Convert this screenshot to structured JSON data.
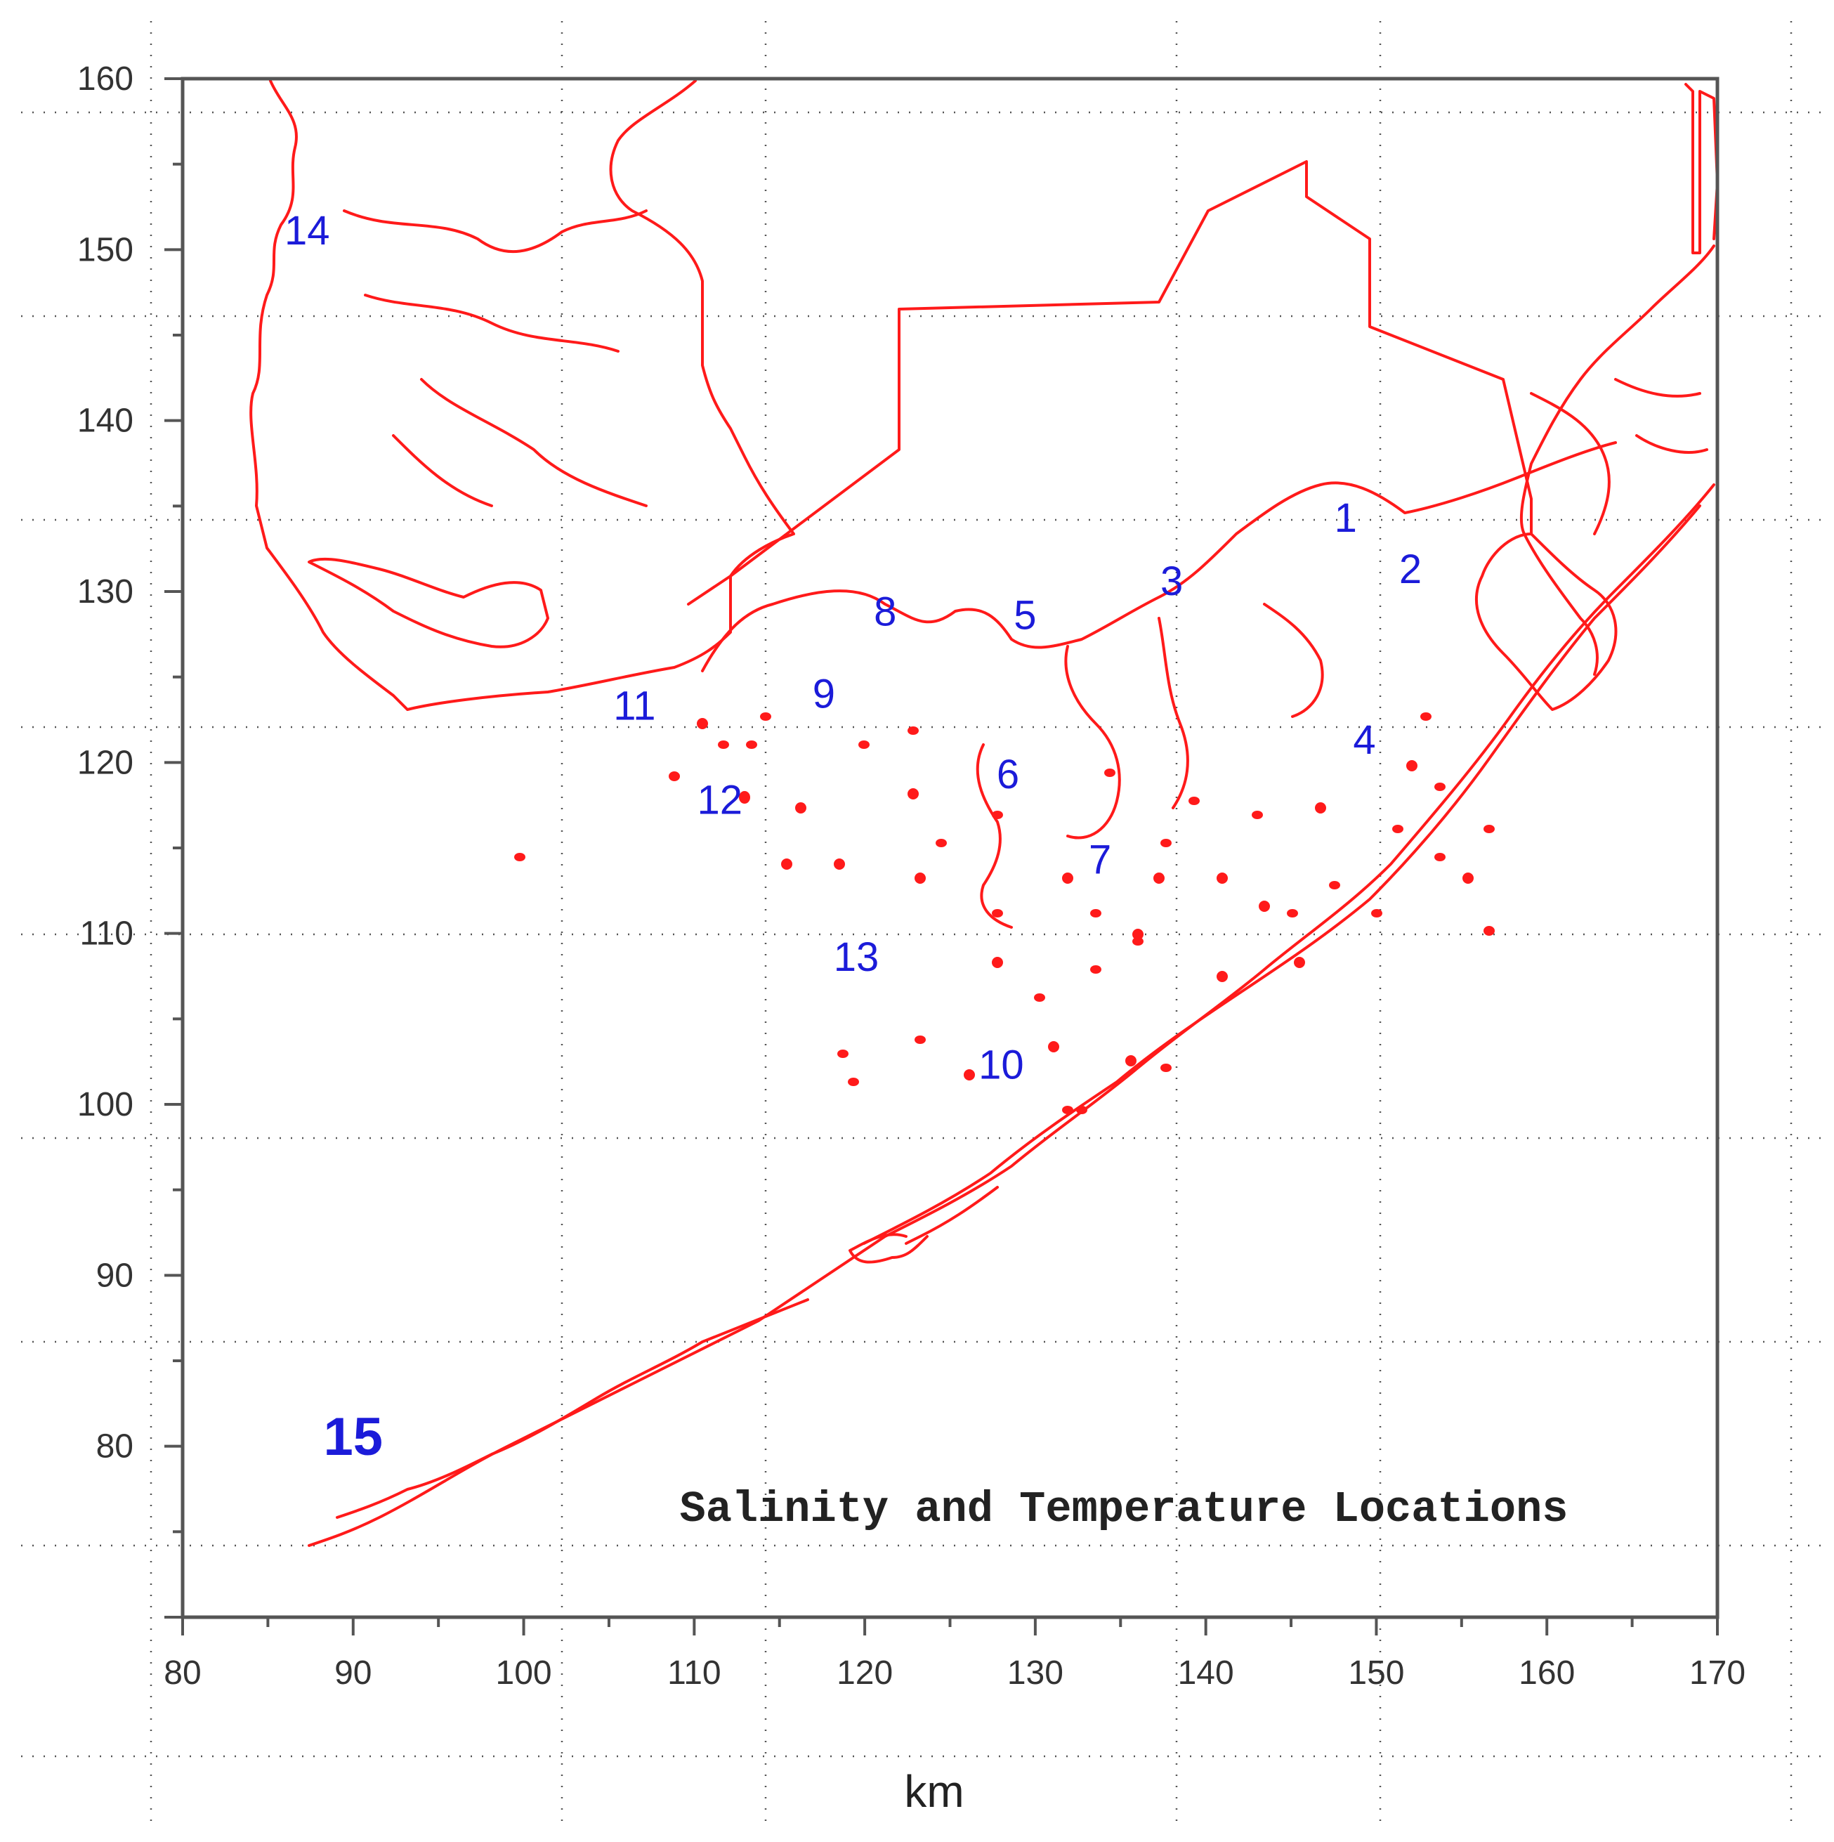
{
  "map": {
    "title": "Salinity and Temperature Locations",
    "x_axis": {
      "unit_label": "km",
      "range": [
        80,
        170
      ],
      "ticks": [
        80,
        90,
        100,
        110,
        120,
        130,
        140,
        150,
        160,
        170
      ],
      "tick_labels": [
        "80",
        "90",
        "100",
        "110",
        "120",
        "130",
        "140",
        "150",
        "160",
        "170"
      ]
    },
    "y_axis": {
      "range": [
        70,
        160
      ],
      "ticks": [
        80,
        90,
        100,
        110,
        120,
        130,
        140,
        150,
        160
      ],
      "tick_labels": [
        "80",
        "90",
        "100",
        "110",
        "120",
        "130",
        "140",
        "150",
        "160"
      ]
    },
    "coastline_color": "#ff1a1a",
    "station_color": "#1b1bd9",
    "grid": "dotted",
    "stations": [
      {
        "label": "1",
        "x": 148.2,
        "y": 133.5
      },
      {
        "label": "2",
        "x": 152.0,
        "y": 130.5
      },
      {
        "label": "3",
        "x": 138.0,
        "y": 129.8
      },
      {
        "label": "4",
        "x": 149.3,
        "y": 120.5
      },
      {
        "label": "5",
        "x": 129.4,
        "y": 127.8
      },
      {
        "label": "6",
        "x": 128.4,
        "y": 118.5
      },
      {
        "label": "7",
        "x": 133.8,
        "y": 113.5
      },
      {
        "label": "8",
        "x": 121.2,
        "y": 128.0
      },
      {
        "label": "9",
        "x": 117.6,
        "y": 123.2
      },
      {
        "label": "10",
        "x": 128.0,
        "y": 101.5
      },
      {
        "label": "11",
        "x": 106.5,
        "y": 122.5
      },
      {
        "label": "12",
        "x": 111.5,
        "y": 117.0
      },
      {
        "label": "13",
        "x": 119.5,
        "y": 107.8
      },
      {
        "label": "14",
        "x": 87.3,
        "y": 150.3
      },
      {
        "label": "15",
        "x": 90.0,
        "y": 79.5,
        "emphasis": true
      }
    ]
  }
}
